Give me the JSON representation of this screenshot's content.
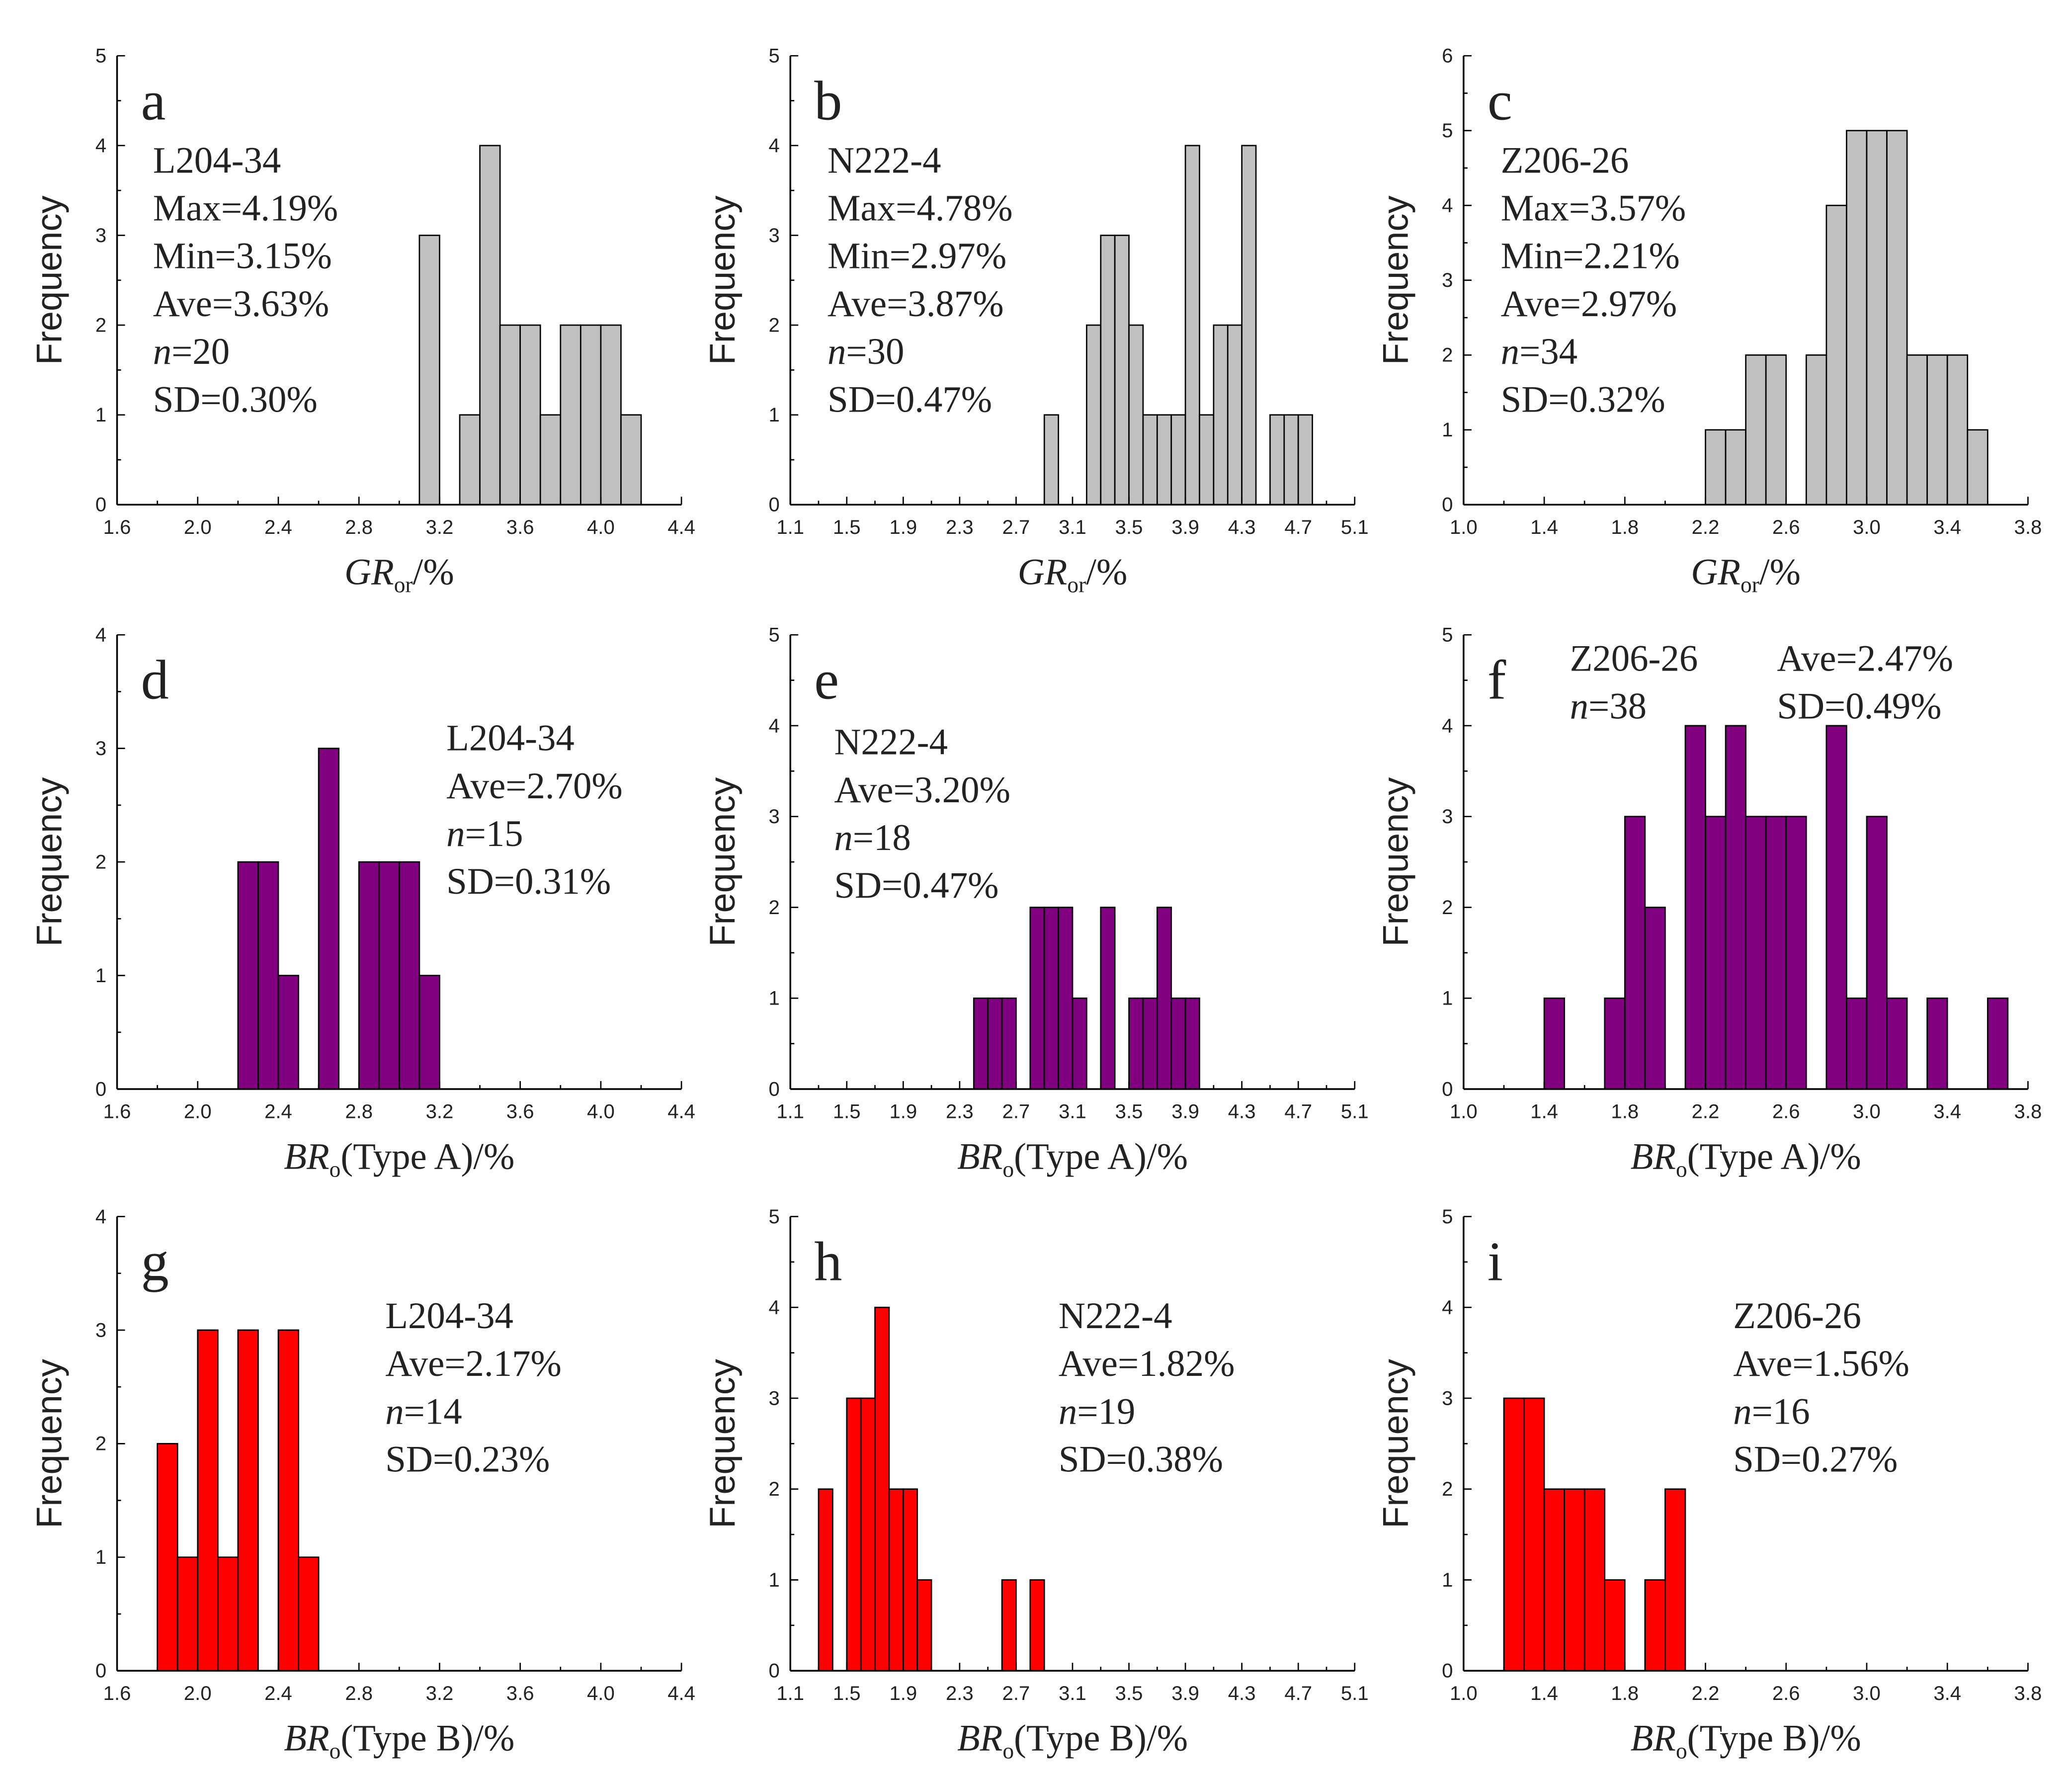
{
  "chart_data": [
    {
      "type": "bar",
      "panel": "a",
      "title": "a",
      "ylabel": "Frequency",
      "xlabel": {
        "main": "GR",
        "sub": "or",
        "suffix": "/%"
      },
      "xlim": [
        1.6,
        4.4
      ],
      "xticks": [
        1.6,
        2.0,
        2.4,
        2.8,
        3.2,
        3.6,
        4.0,
        4.4
      ],
      "ylim": [
        0,
        5
      ],
      "bin_width": 0.1,
      "color": "#c0c0c0",
      "bins": [
        [
          3.1,
          3
        ],
        [
          3.3,
          1
        ],
        [
          3.4,
          4
        ],
        [
          3.5,
          2
        ],
        [
          3.6,
          2
        ],
        [
          3.7,
          1
        ],
        [
          3.8,
          2
        ],
        [
          3.9,
          2
        ],
        [
          4.0,
          2
        ],
        [
          4.1,
          1
        ]
      ],
      "stats": [
        "L204-34",
        "Max=4.19%",
        "Min=3.15%",
        "Ave=3.63%",
        "n=20",
        "SD=0.30%"
      ]
    },
    {
      "type": "bar",
      "panel": "b",
      "title": "b",
      "ylabel": "Frequency",
      "xlabel": {
        "main": "GR",
        "sub": "or",
        "suffix": "/%"
      },
      "xlim": [
        1.1,
        5.1
      ],
      "xticks": [
        1.1,
        1.5,
        1.9,
        2.3,
        2.7,
        3.1,
        3.5,
        3.9,
        4.3,
        4.7,
        5.1
      ],
      "ylim": [
        0,
        5
      ],
      "bin_width": 0.1,
      "color": "#c0c0c0",
      "bins": [
        [
          2.9,
          1
        ],
        [
          3.2,
          2
        ],
        [
          3.3,
          3
        ],
        [
          3.4,
          3
        ],
        [
          3.5,
          2
        ],
        [
          3.6,
          1
        ],
        [
          3.7,
          1
        ],
        [
          3.8,
          1
        ],
        [
          3.9,
          4
        ],
        [
          4.0,
          1
        ],
        [
          4.1,
          2
        ],
        [
          4.2,
          2
        ],
        [
          4.3,
          4
        ],
        [
          4.5,
          1
        ],
        [
          4.6,
          1
        ],
        [
          4.7,
          1
        ]
      ],
      "stats": [
        "N222-4",
        "Max=4.78%",
        "Min=2.97%",
        "Ave=3.87%",
        "n=30",
        "SD=0.47%"
      ]
    },
    {
      "type": "bar",
      "panel": "c",
      "title": "c",
      "ylabel": "Frequency",
      "xlabel": {
        "main": "GR",
        "sub": "or",
        "suffix": "/%"
      },
      "xlim": [
        1.0,
        3.8
      ],
      "xticks": [
        1.0,
        1.4,
        1.8,
        2.2,
        2.6,
        3.0,
        3.4,
        3.8
      ],
      "ylim": [
        0,
        6
      ],
      "bin_width": 0.1,
      "color": "#c0c0c0",
      "bins": [
        [
          2.2,
          1
        ],
        [
          2.3,
          1
        ],
        [
          2.4,
          2
        ],
        [
          2.5,
          2
        ],
        [
          2.7,
          2
        ],
        [
          2.8,
          4
        ],
        [
          2.9,
          5
        ],
        [
          3.0,
          5
        ],
        [
          3.1,
          5
        ],
        [
          3.2,
          2
        ],
        [
          3.3,
          2
        ],
        [
          3.4,
          2
        ],
        [
          3.5,
          1
        ]
      ],
      "stats": [
        "Z206-26",
        "Max=3.57%",
        "Min=2.21%",
        "Ave=2.97%",
        "n=34",
        "SD=0.32%"
      ]
    },
    {
      "type": "bar",
      "panel": "d",
      "title": "d",
      "ylabel": "Frequency",
      "xlabel": {
        "main": "BR",
        "sub": "o",
        "suffix": "(Type A)/%"
      },
      "xlim": [
        1.6,
        4.4
      ],
      "xticks": [
        1.6,
        2.0,
        2.4,
        2.8,
        3.2,
        3.6,
        4.0,
        4.4
      ],
      "ylim": [
        0,
        4
      ],
      "bin_width": 0.1,
      "color": "#800080",
      "bins": [
        [
          2.2,
          2
        ],
        [
          2.3,
          2
        ],
        [
          2.4,
          1
        ],
        [
          2.6,
          3
        ],
        [
          2.8,
          2
        ],
        [
          2.9,
          2
        ],
        [
          3.0,
          2
        ],
        [
          3.1,
          1
        ]
      ],
      "stats": [
        "L204-34",
        "Ave=2.70%",
        "n=15",
        "SD=0.31%"
      ]
    },
    {
      "type": "bar",
      "panel": "e",
      "title": "e",
      "ylabel": "Frequency",
      "xlabel": {
        "main": "BR",
        "sub": "o",
        "suffix": "(Type A)/%"
      },
      "xlim": [
        1.1,
        5.1
      ],
      "xticks": [
        1.1,
        1.5,
        1.9,
        2.3,
        2.7,
        3.1,
        3.5,
        3.9,
        4.3,
        4.7,
        5.1
      ],
      "ylim": [
        0,
        5
      ],
      "bin_width": 0.1,
      "color": "#800080",
      "bins": [
        [
          2.4,
          1
        ],
        [
          2.5,
          1
        ],
        [
          2.6,
          1
        ],
        [
          2.8,
          2
        ],
        [
          2.9,
          2
        ],
        [
          3.0,
          2
        ],
        [
          3.1,
          1
        ],
        [
          3.3,
          2
        ],
        [
          3.5,
          1
        ],
        [
          3.6,
          1
        ],
        [
          3.7,
          2
        ],
        [
          3.8,
          1
        ],
        [
          3.9,
          1
        ]
      ],
      "stats": [
        "N222-4",
        "Ave=3.20%",
        "n=18",
        "SD=0.47%"
      ]
    },
    {
      "type": "bar",
      "panel": "f",
      "title": "f",
      "ylabel": "Frequency",
      "xlabel": {
        "main": "BR",
        "sub": "o",
        "suffix": "(Type A)/%"
      },
      "xlim": [
        1.0,
        3.8
      ],
      "xticks": [
        1.0,
        1.4,
        1.8,
        2.2,
        2.6,
        3.0,
        3.4,
        3.8
      ],
      "ylim": [
        0,
        5
      ],
      "bin_width": 0.1,
      "color": "#800080",
      "bins": [
        [
          1.4,
          1
        ],
        [
          1.7,
          1
        ],
        [
          1.8,
          3
        ],
        [
          1.9,
          2
        ],
        [
          2.1,
          4
        ],
        [
          2.2,
          3
        ],
        [
          2.3,
          4
        ],
        [
          2.4,
          3
        ],
        [
          2.5,
          3
        ],
        [
          2.6,
          3
        ],
        [
          2.8,
          4
        ],
        [
          2.9,
          1
        ],
        [
          3.0,
          3
        ],
        [
          3.1,
          1
        ],
        [
          3.3,
          1
        ],
        [
          3.6,
          1
        ]
      ],
      "stats": [
        "Z206-26",
        "n=38",
        "Ave=2.47%",
        "SD=0.49%"
      ]
    },
    {
      "type": "bar",
      "panel": "g",
      "title": "g",
      "ylabel": "Frequency",
      "xlabel": {
        "main": "BR",
        "sub": "o",
        "suffix": "(Type B)/%"
      },
      "xlim": [
        1.6,
        4.4
      ],
      "xticks": [
        1.6,
        2.0,
        2.4,
        2.8,
        3.2,
        3.6,
        4.0,
        4.4
      ],
      "ylim": [
        0,
        4
      ],
      "bin_width": 0.1,
      "color": "#ff0000",
      "bins": [
        [
          1.8,
          2
        ],
        [
          1.9,
          1
        ],
        [
          2.0,
          3
        ],
        [
          2.1,
          1
        ],
        [
          2.2,
          3
        ],
        [
          2.4,
          3
        ],
        [
          2.5,
          1
        ]
      ],
      "stats": [
        "L204-34",
        "Ave=2.17%",
        "n=14",
        "SD=0.23%"
      ]
    },
    {
      "type": "bar",
      "panel": "h",
      "title": "h",
      "ylabel": "Frequency",
      "xlabel": {
        "main": "BR",
        "sub": "o",
        "suffix": "(Type B)/%"
      },
      "xlim": [
        1.1,
        5.1
      ],
      "xticks": [
        1.1,
        1.5,
        1.9,
        2.3,
        2.7,
        3.1,
        3.5,
        3.9,
        4.3,
        4.7,
        5.1
      ],
      "ylim": [
        0,
        5
      ],
      "bin_width": 0.1,
      "color": "#ff0000",
      "bins": [
        [
          1.3,
          2
        ],
        [
          1.5,
          3
        ],
        [
          1.6,
          3
        ],
        [
          1.7,
          4
        ],
        [
          1.8,
          2
        ],
        [
          1.9,
          2
        ],
        [
          2.0,
          1
        ],
        [
          2.6,
          1
        ],
        [
          2.8,
          1
        ]
      ],
      "stats": [
        "N222-4",
        "Ave=1.82%",
        "n=19",
        "SD=0.38%"
      ]
    },
    {
      "type": "bar",
      "panel": "i",
      "title": "i",
      "ylabel": "Frequency",
      "xlabel": {
        "main": "BR",
        "sub": "o",
        "suffix": "(Type B)/%"
      },
      "xlim": [
        1.0,
        3.8
      ],
      "xticks": [
        1.0,
        1.4,
        1.8,
        2.2,
        2.6,
        3.0,
        3.4,
        3.8
      ],
      "ylim": [
        0,
        5
      ],
      "bin_width": 0.1,
      "color": "#ff0000",
      "bins": [
        [
          1.2,
          3
        ],
        [
          1.3,
          3
        ],
        [
          1.4,
          2
        ],
        [
          1.5,
          2
        ],
        [
          1.6,
          2
        ],
        [
          1.7,
          1
        ],
        [
          1.9,
          1
        ],
        [
          2.0,
          2
        ]
      ],
      "stats": [
        "Z206-26",
        "Ave=1.56%",
        "n=16",
        "SD=0.27%"
      ]
    }
  ]
}
